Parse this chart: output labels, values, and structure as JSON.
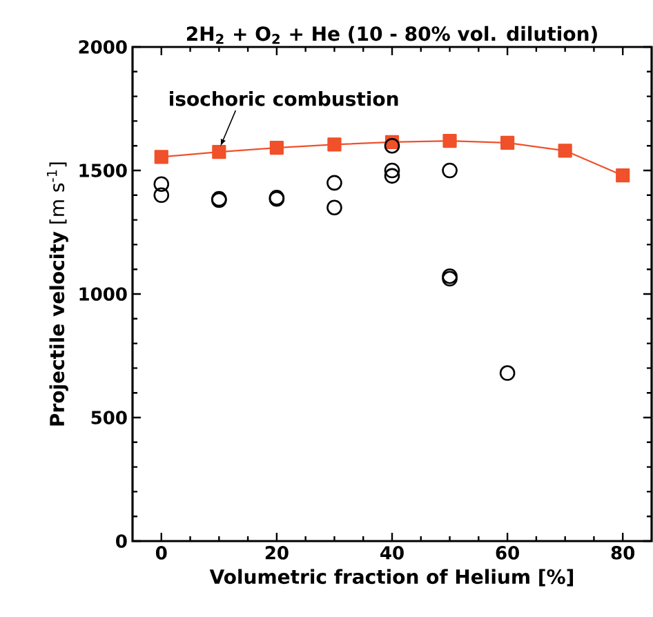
{
  "chart_data": {
    "type": "scatter",
    "title": "2H$_{2}$ + O$_{2}$ + He (10 - 80% vol. dilution)",
    "xlabel": "Volumetric fraction of Helium [%]",
    "ylabel": "**Projectile velocity** [m s$^{-1}$]",
    "xlim": [
      -5,
      85
    ],
    "ylim": [
      0,
      2000
    ],
    "xticks": [
      0,
      20,
      40,
      60,
      80
    ],
    "yticks": [
      0,
      500,
      1000,
      1500,
      2000
    ],
    "grid": false,
    "annotations": [
      {
        "text": "isochoric combustion",
        "x": 10,
        "y": 1575
      }
    ],
    "series": [
      {
        "type": "line",
        "color": "#f0502a",
        "marker": "square",
        "line_style": "solid",
        "x": [
          0,
          10,
          20,
          30,
          40,
          50,
          60,
          70,
          80
        ],
        "values": [
          1555,
          1575,
          1592,
          1605,
          1615,
          1620,
          1612,
          1580,
          1480
        ]
      },
      {
        "color": "#000000",
        "marker": "circle",
        "x": [
          0,
          0,
          10,
          10,
          20,
          20,
          30,
          30,
          40,
          40,
          40,
          50,
          50,
          50,
          60
        ],
        "values": [
          1445,
          1400,
          1385,
          1380,
          1390,
          1385,
          1450,
          1350,
          1600,
          1500,
          1478,
          1500,
          1072,
          1062,
          680
        ]
      }
    ]
  }
}
